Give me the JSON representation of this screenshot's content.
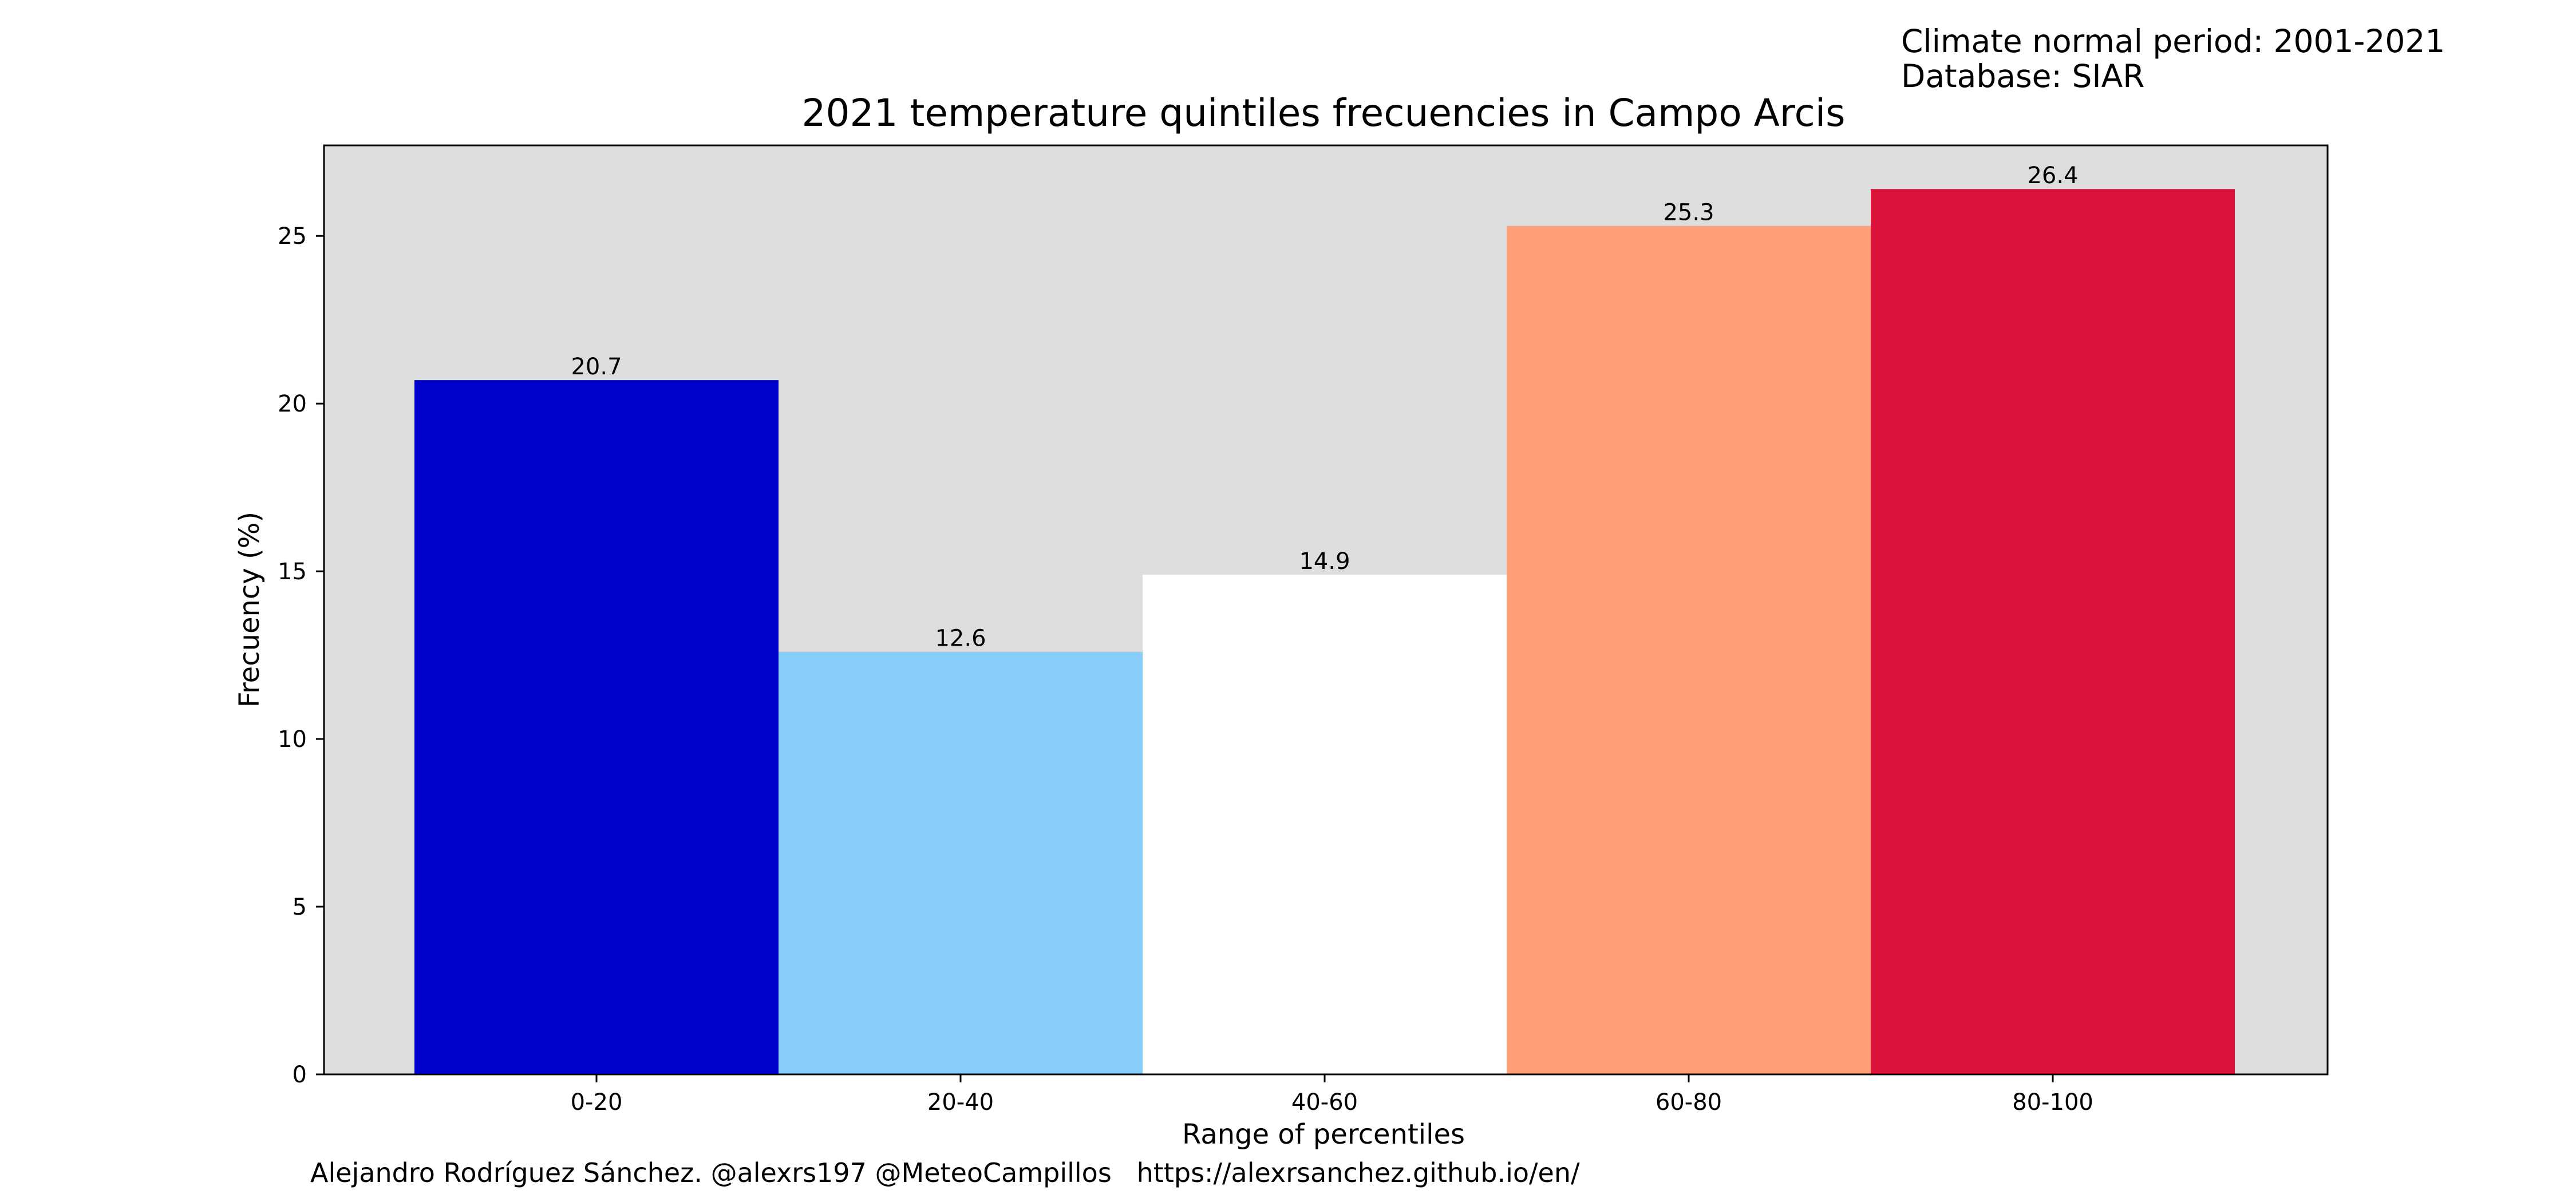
{
  "header": {
    "climate_period": "Climate normal period: 2001-2021",
    "database": "Database: SIAR"
  },
  "footer": {
    "credit": "Alejandro Rodríguez Sánchez. @alexrs197 @MeteoCampillos   https://alexrsanchez.github.io/en/"
  },
  "colors": {
    "plot_background": "#dddddd",
    "bars": [
      "#0000cd",
      "#87cefa",
      "#ffffff",
      "#ffa07a",
      "#dc143c"
    ]
  },
  "chart_data": {
    "type": "bar",
    "title": "2021 temperature quintiles frecuencies in Campo Arcis",
    "xlabel": "Range of percentiles",
    "ylabel": "Frecuency (%)",
    "categories": [
      "0-20",
      "20-40",
      "40-60",
      "60-80",
      "80-100"
    ],
    "values": [
      20.7,
      12.6,
      14.9,
      25.3,
      26.4
    ],
    "data_labels": [
      "20.7",
      "12.6",
      "14.9",
      "25.3",
      "26.4"
    ],
    "ylim": [
      0,
      27.7
    ],
    "yticks": [
      0,
      5,
      10,
      15,
      20,
      25
    ],
    "grid": false,
    "legend": "none"
  }
}
